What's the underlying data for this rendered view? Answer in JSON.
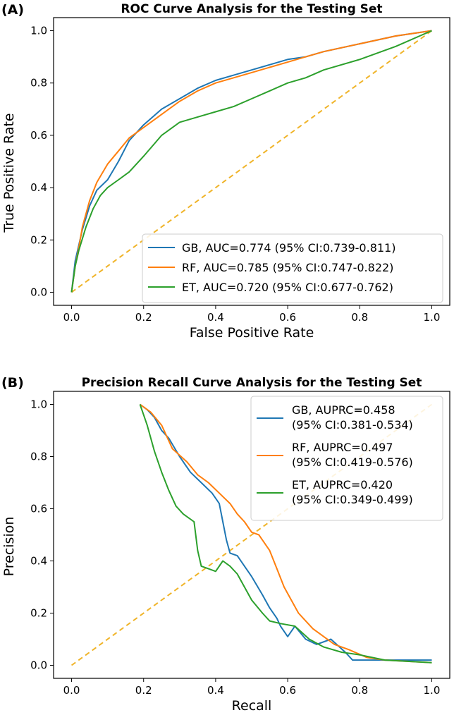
{
  "colors": {
    "gb": "#1f77b4",
    "rf": "#ff7f0e",
    "et": "#2ca02c",
    "chance": "#f0b429"
  },
  "chart_data": [
    {
      "type": "line",
      "panel_label": "(A)",
      "title": "ROC Curve Analysis for the Testing Set",
      "xlabel": "False Positive Rate",
      "ylabel": "True Positive Rate",
      "xlim": [
        -0.05,
        1.05
      ],
      "ylim": [
        -0.05,
        1.05
      ],
      "xticks": [
        "0.0",
        "0.2",
        "0.4",
        "0.6",
        "0.8",
        "1.0"
      ],
      "yticks": [
        "0.0",
        "0.2",
        "0.4",
        "0.6",
        "0.8",
        "1.0"
      ],
      "grid": false,
      "legend_position": "lower-right",
      "reference_line": {
        "style": "dashed",
        "color": "#f0b429",
        "x": [
          0,
          1
        ],
        "y": [
          0,
          1
        ]
      },
      "series": [
        {
          "name": "GB, AUC=0.774 (95% CI:0.739-0.811)",
          "color": "#1f77b4",
          "x": [
            0,
            0.01,
            0.02,
            0.03,
            0.05,
            0.07,
            0.1,
            0.13,
            0.16,
            0.2,
            0.25,
            0.3,
            0.35,
            0.4,
            0.45,
            0.5,
            0.55,
            0.6,
            0.65,
            0.7,
            0.8,
            0.9,
            1.0
          ],
          "y": [
            0,
            0.12,
            0.18,
            0.24,
            0.33,
            0.39,
            0.43,
            0.5,
            0.58,
            0.64,
            0.7,
            0.74,
            0.78,
            0.81,
            0.83,
            0.85,
            0.87,
            0.89,
            0.9,
            0.92,
            0.95,
            0.98,
            1.0
          ]
        },
        {
          "name": "RF, AUC=0.785 (95% CI:0.747-0.822)",
          "color": "#ff7f0e",
          "x": [
            0,
            0.01,
            0.02,
            0.03,
            0.05,
            0.07,
            0.1,
            0.13,
            0.16,
            0.2,
            0.25,
            0.3,
            0.35,
            0.4,
            0.45,
            0.5,
            0.55,
            0.6,
            0.65,
            0.7,
            0.8,
            0.9,
            1.0
          ],
          "y": [
            0,
            0.1,
            0.17,
            0.25,
            0.35,
            0.42,
            0.49,
            0.54,
            0.59,
            0.63,
            0.68,
            0.73,
            0.77,
            0.8,
            0.82,
            0.84,
            0.86,
            0.88,
            0.9,
            0.92,
            0.95,
            0.98,
            1.0
          ]
        },
        {
          "name": "ET, AUC=0.720 (95% CI:0.677-0.762)",
          "color": "#2ca02c",
          "x": [
            0,
            0.01,
            0.02,
            0.04,
            0.06,
            0.08,
            0.1,
            0.13,
            0.16,
            0.2,
            0.25,
            0.3,
            0.35,
            0.4,
            0.45,
            0.5,
            0.55,
            0.6,
            0.65,
            0.7,
            0.8,
            0.9,
            1.0
          ],
          "y": [
            0,
            0.1,
            0.16,
            0.25,
            0.32,
            0.37,
            0.4,
            0.43,
            0.46,
            0.52,
            0.6,
            0.65,
            0.67,
            0.69,
            0.71,
            0.74,
            0.77,
            0.8,
            0.82,
            0.85,
            0.89,
            0.94,
            1.0
          ]
        }
      ]
    },
    {
      "type": "line",
      "panel_label": "(B)",
      "title": "Precision Recall Curve Analysis for the Testing Set",
      "xlabel": "Recall",
      "ylabel": "Precision",
      "xlim": [
        -0.05,
        1.05
      ],
      "ylim": [
        -0.05,
        1.05
      ],
      "xticks": [
        "0.0",
        "0.2",
        "0.4",
        "0.6",
        "0.8",
        "1.0"
      ],
      "yticks": [
        "0.0",
        "0.2",
        "0.4",
        "0.6",
        "0.8",
        "1.0"
      ],
      "grid": false,
      "legend_position": "upper-right",
      "reference_line": {
        "style": "dashed",
        "color": "#f0b429",
        "x": [
          0,
          1
        ],
        "y": [
          0,
          1
        ]
      },
      "series": [
        {
          "name_line1": "GB, AUPRC=0.458",
          "name_line2": "(95% CI:0.381-0.534)",
          "color": "#1f77b4",
          "x": [
            0.19,
            0.21,
            0.23,
            0.25,
            0.27,
            0.3,
            0.33,
            0.36,
            0.39,
            0.41,
            0.42,
            0.43,
            0.44,
            0.46,
            0.48,
            0.5,
            0.53,
            0.55,
            0.57,
            0.58,
            0.6,
            0.62,
            0.65,
            0.68,
            0.72,
            0.76,
            0.78,
            1.0,
            1.0
          ],
          "y": [
            1.0,
            0.98,
            0.95,
            0.9,
            0.87,
            0.8,
            0.74,
            0.7,
            0.66,
            0.62,
            0.55,
            0.48,
            0.43,
            0.42,
            0.38,
            0.34,
            0.27,
            0.22,
            0.18,
            0.15,
            0.11,
            0.15,
            0.1,
            0.08,
            0.1,
            0.05,
            0.02,
            0.02,
            0.02
          ]
        },
        {
          "name_line1": "RF, AUPRC=0.497",
          "name_line2": "(95% CI:0.419-0.576)",
          "color": "#ff7f0e",
          "x": [
            0.19,
            0.22,
            0.25,
            0.28,
            0.32,
            0.35,
            0.38,
            0.41,
            0.44,
            0.46,
            0.48,
            0.5,
            0.52,
            0.55,
            0.57,
            0.59,
            0.61,
            0.63,
            0.65,
            0.67,
            0.7,
            0.73,
            0.77,
            0.82,
            0.87,
            1.0
          ],
          "y": [
            1.0,
            0.97,
            0.92,
            0.83,
            0.78,
            0.73,
            0.7,
            0.66,
            0.62,
            0.58,
            0.55,
            0.51,
            0.5,
            0.44,
            0.37,
            0.3,
            0.25,
            0.2,
            0.17,
            0.14,
            0.11,
            0.08,
            0.06,
            0.03,
            0.02,
            0.01
          ]
        },
        {
          "name_line1": "ET, AUPRC=0.420",
          "name_line2": "(95% CI:0.349-0.499)",
          "color": "#2ca02c",
          "x": [
            0.19,
            0.21,
            0.23,
            0.25,
            0.27,
            0.29,
            0.31,
            0.34,
            0.35,
            0.36,
            0.38,
            0.4,
            0.42,
            0.44,
            0.46,
            0.48,
            0.5,
            0.53,
            0.55,
            0.58,
            0.62,
            0.66,
            0.7,
            0.75,
            0.8,
            0.87,
            1.0
          ],
          "y": [
            1.0,
            0.92,
            0.82,
            0.74,
            0.67,
            0.61,
            0.58,
            0.55,
            0.44,
            0.38,
            0.37,
            0.36,
            0.4,
            0.38,
            0.35,
            0.3,
            0.25,
            0.2,
            0.17,
            0.16,
            0.15,
            0.1,
            0.07,
            0.05,
            0.04,
            0.02,
            0.01
          ]
        }
      ]
    }
  ]
}
